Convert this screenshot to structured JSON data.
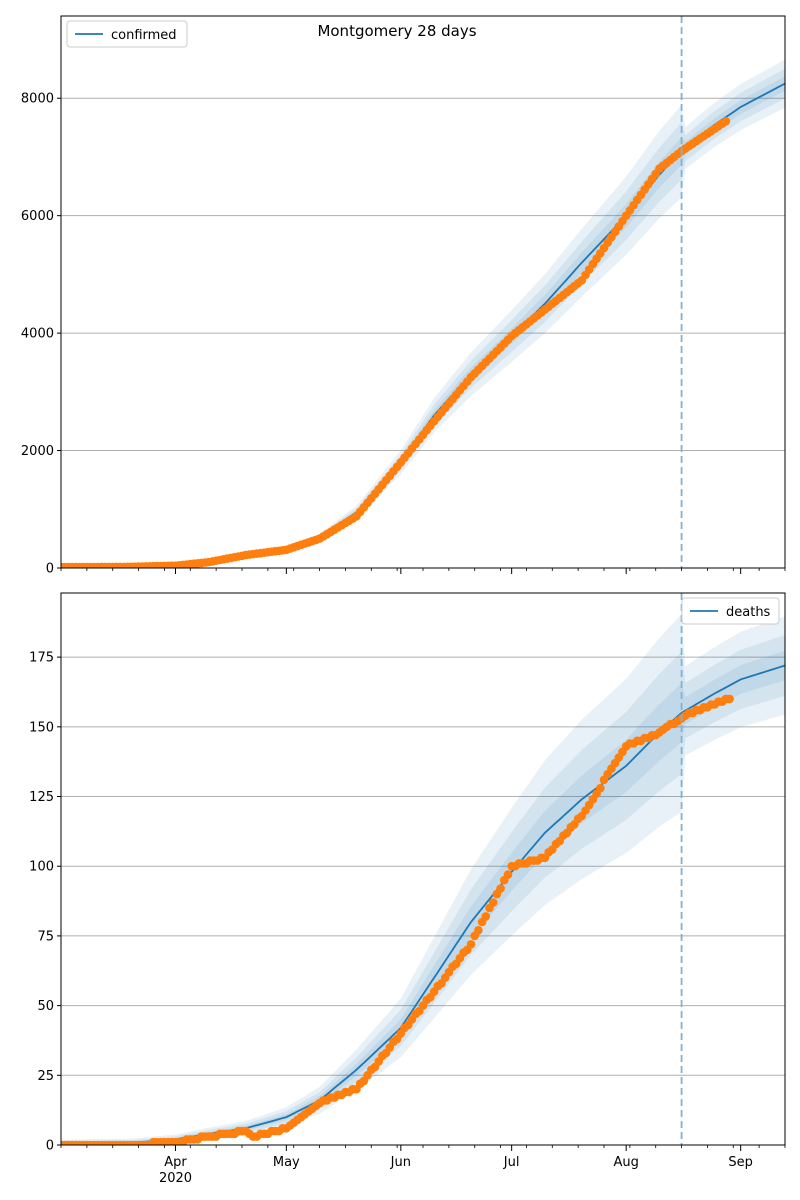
{
  "figure": {
    "title": "Montgomery 28 days"
  },
  "colors": {
    "model_line": "#1f77b4",
    "observed": "#ff7f0e",
    "band": "#1f77b4",
    "grid": "#b0b0b0",
    "cutoff": "#7fb2d8"
  },
  "x_axis": {
    "start_date": "2020-03-01",
    "end_date": "2020-09-13",
    "ticks": [
      {
        "date": "2020-04-01",
        "label": "Apr",
        "sublabel": "2020"
      },
      {
        "date": "2020-05-01",
        "label": "May",
        "sublabel": ""
      },
      {
        "date": "2020-06-01",
        "label": "Jun",
        "sublabel": ""
      },
      {
        "date": "2020-07-01",
        "label": "Jul",
        "sublabel": ""
      },
      {
        "date": "2020-08-01",
        "label": "Aug",
        "sublabel": ""
      },
      {
        "date": "2020-09-01",
        "label": "Sep",
        "sublabel": ""
      }
    ],
    "forecast_start": "2020-08-16"
  },
  "chart_data": [
    {
      "type": "line",
      "title": "Montgomery 28 days",
      "legend": "confirmed",
      "legend_position": "upper-left",
      "ylim": [
        0,
        9400
      ],
      "yticks": [
        0,
        2000,
        4000,
        6000,
        8000
      ],
      "grid": true,
      "series": [
        {
          "name": "confirmed",
          "kind": "model",
          "x": [
            "2020-03-01",
            "2020-03-20",
            "2020-04-01",
            "2020-04-10",
            "2020-04-20",
            "2020-05-01",
            "2020-05-10",
            "2020-05-20",
            "2020-06-01",
            "2020-06-10",
            "2020-06-20",
            "2020-07-01",
            "2020-07-10",
            "2020-07-20",
            "2020-08-01",
            "2020-08-10",
            "2020-08-16",
            "2020-08-25",
            "2020-09-01",
            "2020-09-13"
          ],
          "y": [
            10,
            15,
            40,
            100,
            220,
            320,
            520,
            950,
            1800,
            2600,
            3300,
            3950,
            4500,
            5200,
            6000,
            6700,
            7100,
            7550,
            7850,
            8250
          ]
        },
        {
          "name": "observed",
          "kind": "points",
          "x": [
            "2020-03-01",
            "2020-03-20",
            "2020-04-01",
            "2020-04-10",
            "2020-04-20",
            "2020-05-01",
            "2020-05-10",
            "2020-05-20",
            "2020-06-01",
            "2020-06-10",
            "2020-06-20",
            "2020-07-01",
            "2020-07-10",
            "2020-07-20",
            "2020-08-01",
            "2020-08-10",
            "2020-08-16",
            "2020-08-29"
          ],
          "y": [
            15,
            20,
            40,
            100,
            220,
            310,
            500,
            880,
            1800,
            2500,
            3250,
            3950,
            4400,
            4900,
            6000,
            6800,
            7100,
            7650
          ]
        }
      ]
    },
    {
      "type": "line",
      "legend": "deaths",
      "legend_position": "upper-right",
      "ylim": [
        0,
        198
      ],
      "yticks": [
        0,
        25,
        50,
        75,
        100,
        125,
        150,
        175
      ],
      "grid": true,
      "series": [
        {
          "name": "deaths",
          "kind": "model",
          "x": [
            "2020-03-01",
            "2020-03-20",
            "2020-04-01",
            "2020-04-10",
            "2020-04-20",
            "2020-05-01",
            "2020-05-10",
            "2020-05-20",
            "2020-06-01",
            "2020-06-10",
            "2020-06-20",
            "2020-07-01",
            "2020-07-10",
            "2020-07-20",
            "2020-08-01",
            "2020-08-10",
            "2020-08-16",
            "2020-08-25",
            "2020-09-01",
            "2020-09-13"
          ],
          "y": [
            0.5,
            0.8,
            2,
            4,
            6,
            10,
            16,
            27,
            42,
            60,
            80,
            98,
            112,
            124,
            136,
            148,
            155,
            162,
            167,
            172
          ]
        },
        {
          "name": "observed",
          "kind": "points",
          "x": [
            "2020-03-01",
            "2020-03-20",
            "2020-04-01",
            "2020-04-10",
            "2020-04-20",
            "2020-04-22",
            "2020-05-01",
            "2020-05-10",
            "2020-05-20",
            "2020-06-01",
            "2020-06-10",
            "2020-06-20",
            "2020-07-01",
            "2020-07-10",
            "2020-07-20",
            "2020-08-01",
            "2020-08-10",
            "2020-08-16",
            "2020-08-20",
            "2020-08-29"
          ],
          "y": [
            0,
            0,
            1,
            3,
            5,
            3,
            6,
            15,
            20,
            40,
            55,
            72,
            100,
            103,
            118,
            143,
            148,
            153,
            156,
            160
          ]
        }
      ]
    }
  ]
}
